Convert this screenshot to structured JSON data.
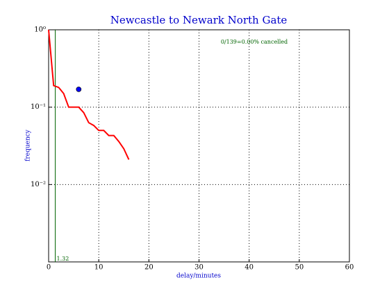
{
  "chart_data": {
    "type": "line",
    "title": "Newcastle to Newark North Gate",
    "x_label": "delay/minutes",
    "y_label": "frequency",
    "annotation": "0/139=0.00% cancelled",
    "log_y": true,
    "grid": true,
    "xlim": [
      0,
      60
    ],
    "xticks": [
      0,
      10,
      20,
      30,
      40,
      50,
      60
    ],
    "ylim": [
      0.001,
      1
    ],
    "yticks": [
      {
        "value": 1,
        "label": "10⁰"
      },
      {
        "value": 0.1,
        "label": "10⁻¹"
      },
      {
        "value": 0.01,
        "label": "10⁻²"
      }
    ],
    "series": [
      {
        "color": "#ff0000",
        "x": [
          0,
          1,
          2,
          3,
          4,
          5,
          6,
          7,
          8,
          9,
          10,
          11,
          12,
          13,
          14,
          15,
          16
        ],
        "values": [
          1.0,
          0.19,
          0.18,
          0.15,
          0.1,
          0.1,
          0.1,
          0.085,
          0.063,
          0.058,
          0.05,
          0.05,
          0.043,
          0.043,
          0.036,
          0.029,
          0.021
        ]
      }
    ],
    "points": {
      "color": "#0000ff",
      "x": [
        6
      ],
      "values": [
        0.17
      ]
    },
    "vline": 1.32,
    "vline_color": "#006400"
  }
}
